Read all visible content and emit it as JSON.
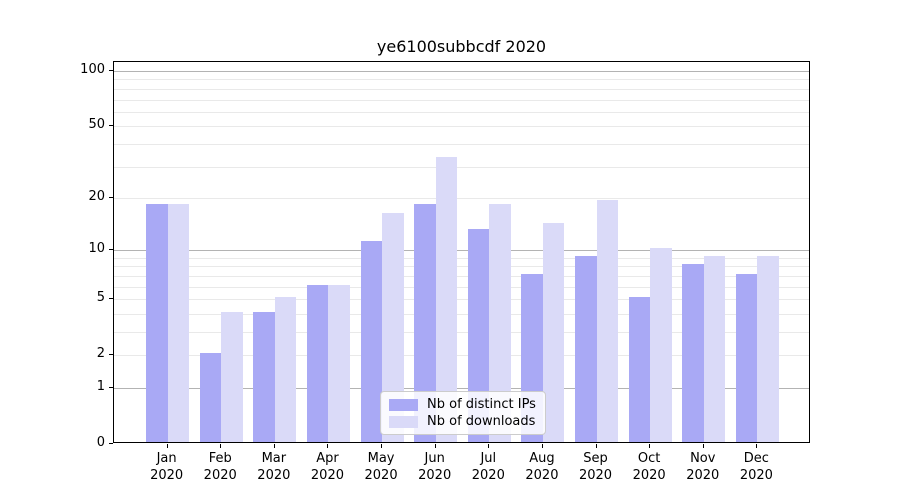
{
  "window": {
    "title": "ye6100subbcdf 2020"
  },
  "chart_data": {
    "type": "bar",
    "title": "ye6100subbcdf 2020",
    "subtitle": "",
    "xlabel": "",
    "ylabel": "",
    "scale": "log1p",
    "categories": [
      "Jan\n2020",
      "Feb\n2020",
      "Mar\n2020",
      "Apr\n2020",
      "May\n2020",
      "Jun\n2020",
      "Jul\n2020",
      "Aug\n2020",
      "Sep\n2020",
      "Oct\n2020",
      "Nov\n2020",
      "Dec\n2020"
    ],
    "series": [
      {
        "name": "Nb of distinct IPs",
        "color": "#a9a9f5",
        "values": [
          18,
          2,
          4,
          6,
          11,
          18,
          13,
          7,
          9,
          5,
          8,
          7
        ]
      },
      {
        "name": "Nb of downloads",
        "color": "#dadaf8",
        "values": [
          18,
          4,
          5,
          6,
          16,
          33,
          18,
          14,
          19,
          10,
          9,
          9
        ]
      }
    ],
    "yticks": [
      0,
      1,
      2,
      5,
      10,
      20,
      50,
      100
    ],
    "ylim": [
      0,
      112
    ],
    "xlim_units": [
      -1,
      12
    ],
    "bar_width_units": 0.4,
    "grid": {
      "major": [
        1,
        10,
        100
      ],
      "minor": [
        2,
        3,
        4,
        5,
        6,
        7,
        8,
        9,
        20,
        30,
        40,
        50,
        60,
        70,
        80,
        90
      ],
      "major_color": "#b3b3b3",
      "minor_color": "#e9e9e9"
    },
    "legend": {
      "position": "lower center",
      "entries": [
        "Nb of distinct IPs",
        "Nb of downloads"
      ]
    }
  }
}
